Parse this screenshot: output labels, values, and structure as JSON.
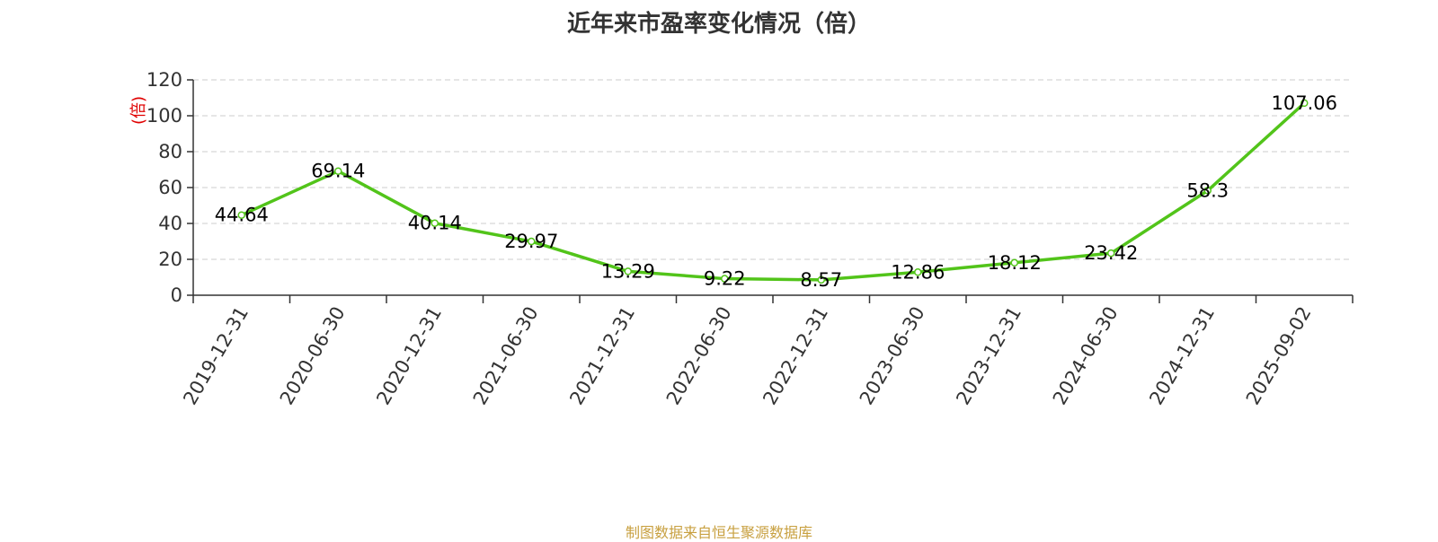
{
  "title": "近年来市盈率变化情况（倍）",
  "footer": "制图数据来自恒生聚源数据库",
  "colors": {
    "line": "#52c41a",
    "axis": "#333333",
    "grid": "#cccccc",
    "ylabel": "#e00000",
    "footer": "#c8a040"
  },
  "chart_data": {
    "type": "line",
    "title": "近年来市盈率变化情况（倍）",
    "xlabel": "",
    "ylabel": "(倍)",
    "categories": [
      "2019-12-31",
      "2020-06-30",
      "2020-12-31",
      "2021-06-30",
      "2021-12-31",
      "2022-06-30",
      "2022-12-31",
      "2023-06-30",
      "2023-12-31",
      "2024-06-30",
      "2024-12-31",
      "2025-09-02"
    ],
    "values": [
      44.64,
      69.14,
      40.14,
      29.97,
      13.29,
      9.22,
      8.57,
      12.86,
      18.12,
      23.42,
      58.3,
      107.06
    ],
    "data_labels": [
      "44.64",
      "69.14",
      "40.14",
      "29.97",
      "13.29",
      "9.22",
      "8.57",
      "12.86",
      "18.12",
      "23.42",
      "58.3",
      "107.06"
    ],
    "ylim": [
      0,
      120
    ],
    "yticks": [
      0,
      20,
      40,
      60,
      80,
      100,
      120
    ],
    "grid": true,
    "legend": "none"
  }
}
